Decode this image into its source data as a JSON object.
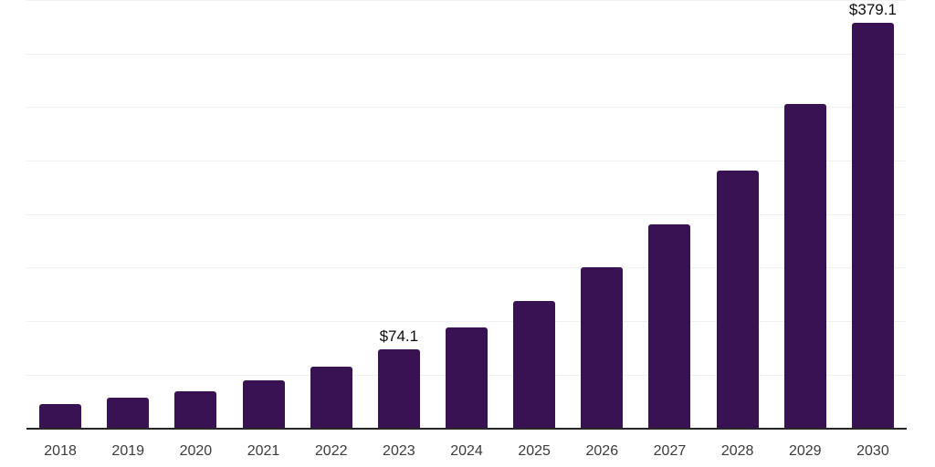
{
  "chart_data": {
    "type": "bar",
    "title": "",
    "xlabel": "",
    "ylabel": "",
    "categories": [
      "2018",
      "2019",
      "2020",
      "2021",
      "2022",
      "2023",
      "2024",
      "2025",
      "2026",
      "2027",
      "2028",
      "2029",
      "2030"
    ],
    "values": [
      23.2,
      28.6,
      35.2,
      45.4,
      58.3,
      74.1,
      94.6,
      119.0,
      151.2,
      190.8,
      240.9,
      303.0,
      379.1
    ],
    "data_labels": [
      {
        "category": "2023",
        "text": "$74.1"
      },
      {
        "category": "2030",
        "text": "$379.1"
      }
    ],
    "value_prefix": "$",
    "ylim": [
      0,
      400
    ],
    "gridline_step": 50,
    "grid": true,
    "legend": false,
    "colors": {
      "bar": "#381252",
      "gridline": "#f1f1f3",
      "axis_line": "#262626",
      "x_label": "#3c3c3c",
      "data_label": "#0d0d0d",
      "background": "#ffffff"
    }
  }
}
